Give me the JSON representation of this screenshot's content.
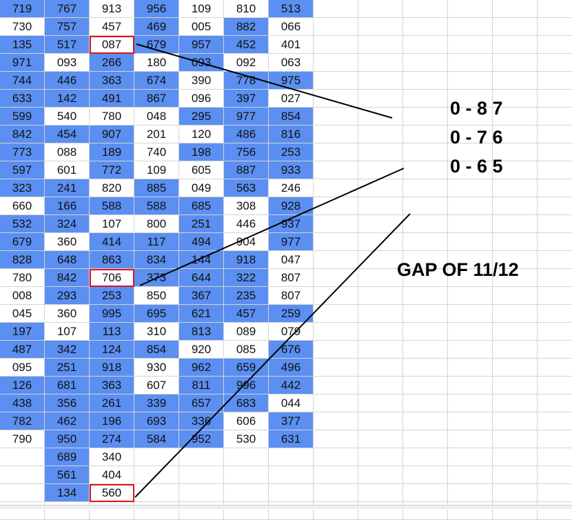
{
  "grid": {
    "rows": [
      [
        "719",
        "767",
        "913",
        "956",
        "109",
        "810",
        "513"
      ],
      [
        "730",
        "757",
        "457",
        "469",
        "005",
        "882",
        "066"
      ],
      [
        "135",
        "517",
        "087",
        "679",
        "957",
        "452",
        "401"
      ],
      [
        "971",
        "093",
        "266",
        "180",
        "093",
        "092",
        "063"
      ],
      [
        "744",
        "446",
        "363",
        "674",
        "390",
        "778",
        "975"
      ],
      [
        "633",
        "142",
        "491",
        "867",
        "096",
        "397",
        "027"
      ],
      [
        "599",
        "540",
        "780",
        "048",
        "295",
        "977",
        "854"
      ],
      [
        "842",
        "454",
        "907",
        "201",
        "120",
        "486",
        "816"
      ],
      [
        "773",
        "088",
        "189",
        "740",
        "198",
        "756",
        "253"
      ],
      [
        "597",
        "601",
        "772",
        "109",
        "605",
        "887",
        "933"
      ],
      [
        "323",
        "241",
        "820",
        "885",
        "049",
        "563",
        "246"
      ],
      [
        "660",
        "166",
        "588",
        "588",
        "685",
        "308",
        "928"
      ],
      [
        "532",
        "324",
        "107",
        "800",
        "251",
        "446",
        "937"
      ],
      [
        "679",
        "360",
        "414",
        "117",
        "494",
        "904",
        "977"
      ],
      [
        "828",
        "648",
        "863",
        "834",
        "144",
        "918",
        "047"
      ],
      [
        "780",
        "842",
        "706",
        "373",
        "644",
        "322",
        "807"
      ],
      [
        "008",
        "293",
        "253",
        "850",
        "367",
        "235",
        "807"
      ],
      [
        "045",
        "360",
        "995",
        "695",
        "621",
        "457",
        "259"
      ],
      [
        "197",
        "107",
        "113",
        "310",
        "813",
        "089",
        "079"
      ],
      [
        "487",
        "342",
        "124",
        "854",
        "920",
        "085",
        "676"
      ],
      [
        "095",
        "251",
        "918",
        "930",
        "962",
        "659",
        "496"
      ],
      [
        "126",
        "681",
        "363",
        "607",
        "811",
        "996",
        "442"
      ],
      [
        "438",
        "356",
        "261",
        "339",
        "657",
        "683",
        "044"
      ],
      [
        "782",
        "462",
        "196",
        "693",
        "336",
        "606",
        "377"
      ],
      [
        "790",
        "950",
        "274",
        "584",
        "952",
        "530",
        "631"
      ],
      [
        "",
        "689",
        "340",
        "",
        "",
        "",
        ""
      ],
      [
        "",
        "561",
        "404",
        "",
        "",
        "",
        ""
      ],
      [
        "",
        "134",
        "560",
        "",
        "",
        "",
        ""
      ]
    ],
    "blue": [
      [
        1,
        1,
        0,
        1,
        0,
        0,
        1
      ],
      [
        0,
        1,
        0,
        1,
        0,
        1,
        0
      ],
      [
        1,
        1,
        0,
        1,
        1,
        1,
        0
      ],
      [
        1,
        0,
        1,
        0,
        1,
        0,
        0
      ],
      [
        1,
        1,
        1,
        1,
        0,
        1,
        1
      ],
      [
        1,
        1,
        1,
        1,
        0,
        1,
        0
      ],
      [
        1,
        0,
        0,
        0,
        1,
        1,
        1
      ],
      [
        1,
        1,
        1,
        0,
        0,
        1,
        1
      ],
      [
        1,
        0,
        1,
        0,
        1,
        1,
        1
      ],
      [
        1,
        0,
        1,
        0,
        0,
        1,
        1
      ],
      [
        1,
        1,
        0,
        1,
        0,
        1,
        0
      ],
      [
        0,
        1,
        1,
        1,
        1,
        0,
        1
      ],
      [
        1,
        1,
        0,
        0,
        1,
        0,
        1
      ],
      [
        1,
        0,
        1,
        1,
        1,
        0,
        1
      ],
      [
        1,
        1,
        1,
        1,
        1,
        1,
        0
      ],
      [
        0,
        1,
        0,
        1,
        1,
        1,
        0
      ],
      [
        0,
        1,
        1,
        0,
        1,
        1,
        0
      ],
      [
        0,
        0,
        1,
        1,
        1,
        1,
        1
      ],
      [
        1,
        0,
        1,
        0,
        1,
        0,
        0
      ],
      [
        1,
        1,
        1,
        1,
        0,
        0,
        1
      ],
      [
        0,
        1,
        1,
        0,
        1,
        1,
        1
      ],
      [
        1,
        1,
        1,
        0,
        1,
        1,
        1
      ],
      [
        1,
        1,
        1,
        1,
        1,
        1,
        0
      ],
      [
        1,
        1,
        1,
        1,
        1,
        0,
        1
      ],
      [
        0,
        1,
        1,
        1,
        1,
        0,
        1
      ],
      [
        0,
        1,
        0,
        0,
        0,
        0,
        0
      ],
      [
        0,
        1,
        0,
        0,
        0,
        0,
        0
      ],
      [
        0,
        1,
        0,
        0,
        0,
        0,
        0
      ]
    ],
    "highlighted": [
      [
        2,
        2
      ],
      [
        15,
        2
      ],
      [
        27,
        2
      ]
    ]
  },
  "annotations": {
    "sequence": [
      "0 - 8 7",
      "0 - 7 6",
      "0 - 6 5"
    ],
    "gap_label": "GAP OF 11/12"
  },
  "colors": {
    "cell_blue": "#5b8ff1",
    "highlight_border": "#d9151b",
    "gridline": "#d4d4d4",
    "annotation_line": "#000000"
  }
}
